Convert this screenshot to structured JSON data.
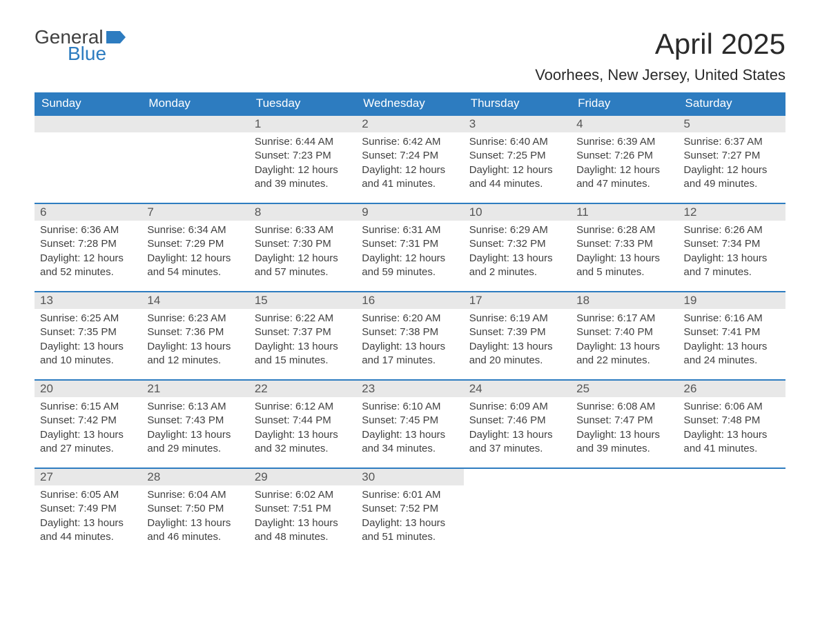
{
  "logo": {
    "text1": "General",
    "text2": "Blue",
    "flag_color": "#2d7cc0"
  },
  "title": "April 2025",
  "location": "Voorhees, New Jersey, United States",
  "weekdays": [
    "Sunday",
    "Monday",
    "Tuesday",
    "Wednesday",
    "Thursday",
    "Friday",
    "Saturday"
  ],
  "colors": {
    "header_bg": "#2d7cc0",
    "header_text": "#ffffff",
    "day_number_bg": "#e8e8e8",
    "day_number_text": "#555555",
    "body_text": "#404040",
    "row_border": "#2d7cc0"
  },
  "weeks": [
    [
      {
        "empty": true
      },
      {
        "empty": true
      },
      {
        "day": "1",
        "sunrise": "Sunrise: 6:44 AM",
        "sunset": "Sunset: 7:23 PM",
        "daylight1": "Daylight: 12 hours",
        "daylight2": "and 39 minutes."
      },
      {
        "day": "2",
        "sunrise": "Sunrise: 6:42 AM",
        "sunset": "Sunset: 7:24 PM",
        "daylight1": "Daylight: 12 hours",
        "daylight2": "and 41 minutes."
      },
      {
        "day": "3",
        "sunrise": "Sunrise: 6:40 AM",
        "sunset": "Sunset: 7:25 PM",
        "daylight1": "Daylight: 12 hours",
        "daylight2": "and 44 minutes."
      },
      {
        "day": "4",
        "sunrise": "Sunrise: 6:39 AM",
        "sunset": "Sunset: 7:26 PM",
        "daylight1": "Daylight: 12 hours",
        "daylight2": "and 47 minutes."
      },
      {
        "day": "5",
        "sunrise": "Sunrise: 6:37 AM",
        "sunset": "Sunset: 7:27 PM",
        "daylight1": "Daylight: 12 hours",
        "daylight2": "and 49 minutes."
      }
    ],
    [
      {
        "day": "6",
        "sunrise": "Sunrise: 6:36 AM",
        "sunset": "Sunset: 7:28 PM",
        "daylight1": "Daylight: 12 hours",
        "daylight2": "and 52 minutes."
      },
      {
        "day": "7",
        "sunrise": "Sunrise: 6:34 AM",
        "sunset": "Sunset: 7:29 PM",
        "daylight1": "Daylight: 12 hours",
        "daylight2": "and 54 minutes."
      },
      {
        "day": "8",
        "sunrise": "Sunrise: 6:33 AM",
        "sunset": "Sunset: 7:30 PM",
        "daylight1": "Daylight: 12 hours",
        "daylight2": "and 57 minutes."
      },
      {
        "day": "9",
        "sunrise": "Sunrise: 6:31 AM",
        "sunset": "Sunset: 7:31 PM",
        "daylight1": "Daylight: 12 hours",
        "daylight2": "and 59 minutes."
      },
      {
        "day": "10",
        "sunrise": "Sunrise: 6:29 AM",
        "sunset": "Sunset: 7:32 PM",
        "daylight1": "Daylight: 13 hours",
        "daylight2": "and 2 minutes."
      },
      {
        "day": "11",
        "sunrise": "Sunrise: 6:28 AM",
        "sunset": "Sunset: 7:33 PM",
        "daylight1": "Daylight: 13 hours",
        "daylight2": "and 5 minutes."
      },
      {
        "day": "12",
        "sunrise": "Sunrise: 6:26 AM",
        "sunset": "Sunset: 7:34 PM",
        "daylight1": "Daylight: 13 hours",
        "daylight2": "and 7 minutes."
      }
    ],
    [
      {
        "day": "13",
        "sunrise": "Sunrise: 6:25 AM",
        "sunset": "Sunset: 7:35 PM",
        "daylight1": "Daylight: 13 hours",
        "daylight2": "and 10 minutes."
      },
      {
        "day": "14",
        "sunrise": "Sunrise: 6:23 AM",
        "sunset": "Sunset: 7:36 PM",
        "daylight1": "Daylight: 13 hours",
        "daylight2": "and 12 minutes."
      },
      {
        "day": "15",
        "sunrise": "Sunrise: 6:22 AM",
        "sunset": "Sunset: 7:37 PM",
        "daylight1": "Daylight: 13 hours",
        "daylight2": "and 15 minutes."
      },
      {
        "day": "16",
        "sunrise": "Sunrise: 6:20 AM",
        "sunset": "Sunset: 7:38 PM",
        "daylight1": "Daylight: 13 hours",
        "daylight2": "and 17 minutes."
      },
      {
        "day": "17",
        "sunrise": "Sunrise: 6:19 AM",
        "sunset": "Sunset: 7:39 PM",
        "daylight1": "Daylight: 13 hours",
        "daylight2": "and 20 minutes."
      },
      {
        "day": "18",
        "sunrise": "Sunrise: 6:17 AM",
        "sunset": "Sunset: 7:40 PM",
        "daylight1": "Daylight: 13 hours",
        "daylight2": "and 22 minutes."
      },
      {
        "day": "19",
        "sunrise": "Sunrise: 6:16 AM",
        "sunset": "Sunset: 7:41 PM",
        "daylight1": "Daylight: 13 hours",
        "daylight2": "and 24 minutes."
      }
    ],
    [
      {
        "day": "20",
        "sunrise": "Sunrise: 6:15 AM",
        "sunset": "Sunset: 7:42 PM",
        "daylight1": "Daylight: 13 hours",
        "daylight2": "and 27 minutes."
      },
      {
        "day": "21",
        "sunrise": "Sunrise: 6:13 AM",
        "sunset": "Sunset: 7:43 PM",
        "daylight1": "Daylight: 13 hours",
        "daylight2": "and 29 minutes."
      },
      {
        "day": "22",
        "sunrise": "Sunrise: 6:12 AM",
        "sunset": "Sunset: 7:44 PM",
        "daylight1": "Daylight: 13 hours",
        "daylight2": "and 32 minutes."
      },
      {
        "day": "23",
        "sunrise": "Sunrise: 6:10 AM",
        "sunset": "Sunset: 7:45 PM",
        "daylight1": "Daylight: 13 hours",
        "daylight2": "and 34 minutes."
      },
      {
        "day": "24",
        "sunrise": "Sunrise: 6:09 AM",
        "sunset": "Sunset: 7:46 PM",
        "daylight1": "Daylight: 13 hours",
        "daylight2": "and 37 minutes."
      },
      {
        "day": "25",
        "sunrise": "Sunrise: 6:08 AM",
        "sunset": "Sunset: 7:47 PM",
        "daylight1": "Daylight: 13 hours",
        "daylight2": "and 39 minutes."
      },
      {
        "day": "26",
        "sunrise": "Sunrise: 6:06 AM",
        "sunset": "Sunset: 7:48 PM",
        "daylight1": "Daylight: 13 hours",
        "daylight2": "and 41 minutes."
      }
    ],
    [
      {
        "day": "27",
        "sunrise": "Sunrise: 6:05 AM",
        "sunset": "Sunset: 7:49 PM",
        "daylight1": "Daylight: 13 hours",
        "daylight2": "and 44 minutes."
      },
      {
        "day": "28",
        "sunrise": "Sunrise: 6:04 AM",
        "sunset": "Sunset: 7:50 PM",
        "daylight1": "Daylight: 13 hours",
        "daylight2": "and 46 minutes."
      },
      {
        "day": "29",
        "sunrise": "Sunrise: 6:02 AM",
        "sunset": "Sunset: 7:51 PM",
        "daylight1": "Daylight: 13 hours",
        "daylight2": "and 48 minutes."
      },
      {
        "day": "30",
        "sunrise": "Sunrise: 6:01 AM",
        "sunset": "Sunset: 7:52 PM",
        "daylight1": "Daylight: 13 hours",
        "daylight2": "and 51 minutes."
      },
      {
        "empty": true
      },
      {
        "empty": true
      },
      {
        "empty": true
      }
    ]
  ]
}
